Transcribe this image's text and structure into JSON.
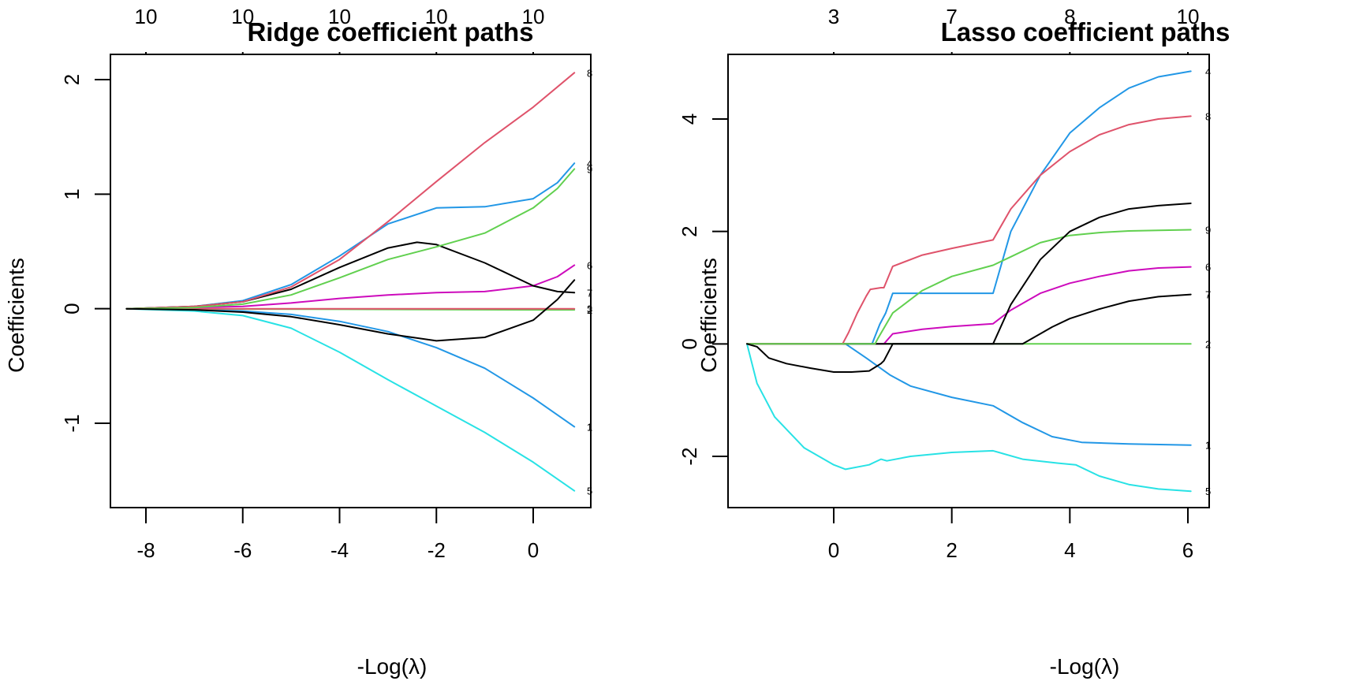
{
  "chart_data": [
    {
      "type": "line",
      "title": "Ridge coefficient paths",
      "xlabel": "-Log(λ)",
      "ylabel": "Coefficients",
      "xlim": [
        -8.5,
        1.0
      ],
      "ylim": [
        -1.7,
        2.25
      ],
      "xticks": [
        -8,
        -6,
        -4,
        -2,
        0
      ],
      "xtick_labels": [
        "-8",
        "-6",
        "-4",
        "-2",
        "0"
      ],
      "yticks": [
        -1,
        0,
        1,
        2
      ],
      "ytick_labels": [
        "-1",
        "0",
        "1",
        "2"
      ],
      "top_axis": {
        "ticks": [
          -8,
          -6,
          -4,
          -2,
          0
        ],
        "labels": [
          "10",
          "10",
          "10",
          "10",
          "10"
        ]
      },
      "grid": false,
      "legend": "none",
      "series": [
        {
          "name": "1",
          "color": "#2297E6",
          "x": [
            -8.4,
            -7,
            -6,
            -5,
            -4,
            -3,
            -2,
            -1,
            0,
            0.85
          ],
          "y": [
            0,
            -0.01,
            -0.02,
            -0.05,
            -0.11,
            -0.2,
            -0.34,
            -0.52,
            -0.78,
            -1.03
          ]
        },
        {
          "name": "2",
          "color": "#61D04F",
          "x": [
            -8.4,
            -4,
            0,
            0.85
          ],
          "y": [
            0,
            -0.005,
            -0.01,
            -0.01
          ]
        },
        {
          "name": "3",
          "color": "#DF536B",
          "x": [
            -8.4,
            -4,
            0,
            0.85
          ],
          "y": [
            0,
            0.0,
            0.0,
            0.0
          ]
        },
        {
          "name": "4",
          "color": "#2297E6",
          "x": [
            -8.4,
            -7,
            -6,
            -5,
            -4,
            -3,
            -2,
            -1,
            0,
            0.5,
            0.85
          ],
          "y": [
            0,
            0.02,
            0.07,
            0.21,
            0.46,
            0.74,
            0.88,
            0.89,
            0.96,
            1.1,
            1.27
          ]
        },
        {
          "name": "5",
          "color": "#28E2E5",
          "x": [
            -8.4,
            -7,
            -6,
            -5,
            -4,
            -3,
            -2,
            -1,
            0,
            0.85
          ],
          "y": [
            0,
            -0.02,
            -0.06,
            -0.17,
            -0.38,
            -0.62,
            -0.85,
            -1.08,
            -1.34,
            -1.59
          ]
        },
        {
          "name": "6",
          "color": "#CD0BBC",
          "x": [
            -8.4,
            -7,
            -6,
            -5,
            -4,
            -3,
            -2,
            -1,
            0,
            0.5,
            0.85
          ],
          "y": [
            0,
            0.01,
            0.02,
            0.05,
            0.09,
            0.12,
            0.14,
            0.15,
            0.2,
            0.28,
            0.38
          ]
        },
        {
          "name": "7",
          "color": "#000000",
          "x": [
            -8.4,
            -7,
            -6,
            -5,
            -4,
            -3,
            -2.4,
            -2,
            -1,
            0,
            0.5,
            0.85
          ],
          "y": [
            0,
            0.02,
            0.06,
            0.17,
            0.36,
            0.53,
            0.58,
            0.56,
            0.4,
            0.2,
            0.15,
            0.14
          ]
        },
        {
          "name": "8",
          "color": "#DF536B",
          "x": [
            -8.4,
            -7,
            -6,
            -5,
            -4,
            -3,
            -2,
            -1,
            0,
            0.85
          ],
          "y": [
            0,
            0.02,
            0.06,
            0.19,
            0.43,
            0.76,
            1.11,
            1.45,
            1.76,
            2.06
          ]
        },
        {
          "name": "9",
          "color": "#61D04F",
          "x": [
            -8.4,
            -7,
            -6,
            -5,
            -4,
            -3,
            -2,
            -1,
            0,
            0.5,
            0.85
          ],
          "y": [
            0,
            0.01,
            0.04,
            0.12,
            0.27,
            0.43,
            0.54,
            0.66,
            0.88,
            1.05,
            1.22
          ]
        },
        {
          "name": "10",
          "color": "#000000",
          "x": [
            -8.4,
            -7,
            -6,
            -5,
            -4,
            -3,
            -2,
            -1,
            0,
            0.5,
            0.85
          ],
          "y": [
            0,
            -0.01,
            -0.03,
            -0.07,
            -0.14,
            -0.22,
            -0.28,
            -0.25,
            -0.1,
            0.08,
            0.25
          ]
        }
      ],
      "end_labels": [
        "8",
        "4",
        "9",
        "6",
        "1",
        "7",
        "2",
        "3",
        "1",
        "5"
      ]
    },
    {
      "type": "line",
      "title": "Lasso coefficient paths",
      "xlabel": "-Log(λ)",
      "ylabel": "Coefficients",
      "xlim": [
        -1.8,
        6.3
      ],
      "ylim": [
        -2.9,
        5.2
      ],
      "xticks": [
        0,
        2,
        4,
        6
      ],
      "xtick_labels": [
        "0",
        "2",
        "4",
        "6"
      ],
      "yticks": [
        -2,
        0,
        2,
        4
      ],
      "ytick_labels": [
        "-2",
        "0",
        "2",
        "4"
      ],
      "top_axis": {
        "ticks": [
          0,
          2,
          4,
          6
        ],
        "labels": [
          "3",
          "7",
          "8",
          "10"
        ]
      },
      "grid": false,
      "legend": "none",
      "series": [
        {
          "name": "1",
          "color": "#2297E6",
          "x": [
            -1.47,
            0.2,
            0.55,
            0.95,
            1.3,
            2,
            2.7,
            3.2,
            3.7,
            4.2,
            5,
            6.05
          ],
          "y": [
            0,
            0,
            -0.25,
            -0.55,
            -0.75,
            -0.95,
            -1.1,
            -1.4,
            -1.65,
            -1.75,
            -1.78,
            -1.8
          ]
        },
        {
          "name": "2",
          "color": "#61D04F",
          "x": [
            -1.47,
            6.05
          ],
          "y": [
            0,
            0
          ]
        },
        {
          "name": "4",
          "color": "#2297E6",
          "x": [
            -1.47,
            0.65,
            0.78,
            0.88,
            1.0,
            1.3,
            2.0,
            2.7,
            3.0,
            3.5,
            4.0,
            4.5,
            5.0,
            5.5,
            6.05
          ],
          "y": [
            0,
            0,
            0.35,
            0.55,
            0.9,
            0.9,
            0.9,
            0.9,
            2.0,
            3.0,
            3.75,
            4.2,
            4.55,
            4.75,
            4.85
          ]
        },
        {
          "name": "5",
          "color": "#28E2E5",
          "x": [
            -1.47,
            -1.3,
            -1.0,
            -0.5,
            0,
            0.2,
            0.6,
            0.7,
            0.8,
            0.9,
            1.3,
            2.0,
            2.7,
            3.2,
            3.8,
            4.1,
            4.5,
            5.0,
            5.5,
            6.05
          ],
          "y": [
            0,
            -0.7,
            -1.3,
            -1.85,
            -2.15,
            -2.23,
            -2.15,
            -2.1,
            -2.05,
            -2.08,
            -2.0,
            -1.93,
            -1.9,
            -2.05,
            -2.12,
            -2.15,
            -2.35,
            -2.5,
            -2.58,
            -2.62
          ]
        },
        {
          "name": "6",
          "color": "#CD0BBC",
          "x": [
            -1.47,
            0.85,
            1.0,
            1.5,
            2.0,
            2.7,
            3.0,
            3.5,
            4.0,
            4.5,
            5.0,
            5.5,
            6.05
          ],
          "y": [
            0,
            0,
            0.18,
            0.26,
            0.31,
            0.36,
            0.6,
            0.9,
            1.08,
            1.2,
            1.3,
            1.35,
            1.37
          ]
        },
        {
          "name": "7",
          "color": "#000000",
          "x": [
            -1.47,
            3.2,
            3.4,
            3.7,
            4.0,
            4.5,
            5.0,
            5.5,
            6.05
          ],
          "y": [
            0,
            0,
            0.12,
            0.3,
            0.45,
            0.62,
            0.76,
            0.84,
            0.88
          ]
        },
        {
          "name": "8",
          "color": "#DF536B",
          "x": [
            -1.47,
            0.15,
            0.25,
            0.4,
            0.55,
            0.62,
            0.8,
            0.85,
            1.0,
            1.5,
            2.0,
            2.7,
            3.0,
            3.5,
            4.0,
            4.5,
            5.0,
            5.5,
            6.05
          ],
          "y": [
            0,
            0,
            0.2,
            0.55,
            0.85,
            0.97,
            1.0,
            1.0,
            1.38,
            1.58,
            1.7,
            1.85,
            2.4,
            3.0,
            3.42,
            3.72,
            3.9,
            4.0,
            4.05
          ]
        },
        {
          "name": "9",
          "color": "#61D04F",
          "x": [
            -1.47,
            0.7,
            0.75,
            1.0,
            1.5,
            2.0,
            2.7,
            3.0,
            3.5,
            4.0,
            4.5,
            5.0,
            5.5,
            6.05
          ],
          "y": [
            0,
            0,
            0.1,
            0.55,
            0.95,
            1.2,
            1.4,
            1.55,
            1.8,
            1.93,
            1.98,
            2.01,
            2.02,
            2.03
          ]
        },
        {
          "name": "10",
          "color": "#000000",
          "x": [
            -1.47,
            -1.3,
            -1.1,
            -0.8,
            -0.4,
            0,
            0.3,
            0.6,
            0.8,
            0.85,
            1.0,
            1.5,
            2.0,
            2.7,
            3.0,
            3.5,
            4.0,
            4.5,
            5.0,
            5.5,
            6.05
          ],
          "y": [
            0,
            -0.05,
            -0.25,
            -0.35,
            -0.43,
            -0.5,
            -0.5,
            -0.48,
            -0.35,
            -0.3,
            0,
            0,
            0,
            0,
            0.7,
            1.5,
            2.0,
            2.25,
            2.4,
            2.46,
            2.5
          ]
        }
      ],
      "end_labels": [
        "4",
        "8",
        "1",
        "9",
        "6",
        "7",
        "2",
        "1",
        "5"
      ]
    }
  ]
}
